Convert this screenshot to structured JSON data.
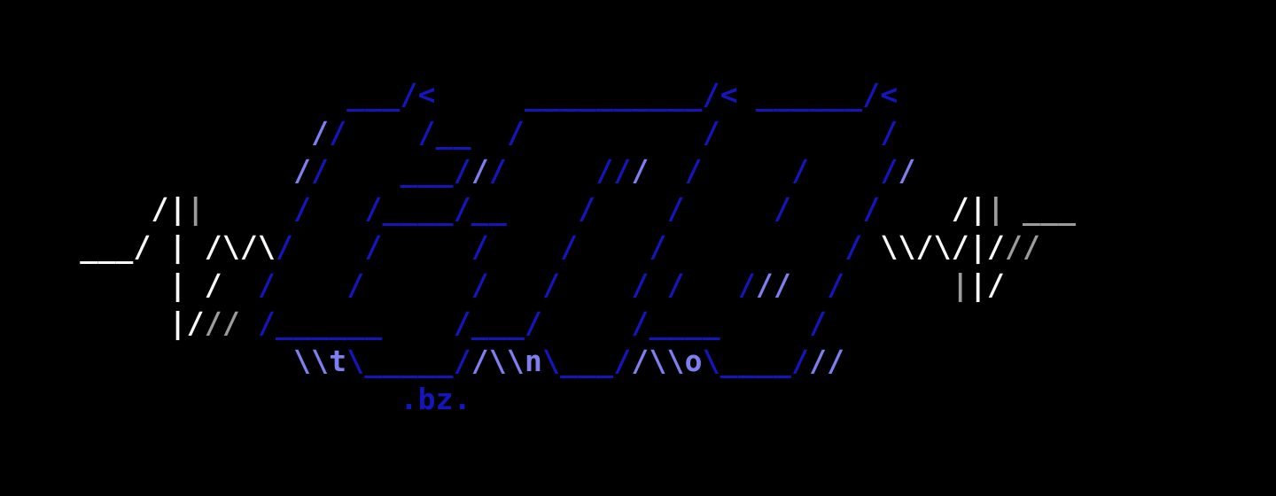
{
  "page": {
    "background": "#000000"
  },
  "art": {
    "palette": {
      "d": "#1515bd",
      "l": "#7e7ef0",
      "w": "#fafafa",
      "g": "#9c9c9c"
    },
    "letters": [
      "t",
      "n",
      "o"
    ],
    "site_label": ".bz.",
    "lines": [
      [
        [
          "s",
          "                   "
        ],
        [
          "d",
          "___/<"
        ],
        [
          "s",
          "     "
        ],
        [
          "d",
          "__________/<"
        ],
        [
          "s",
          " "
        ],
        [
          "d",
          "______/<"
        ]
      ],
      [
        [
          "s",
          "                 "
        ],
        [
          "l",
          "/"
        ],
        [
          "d",
          "/"
        ],
        [
          "s",
          "    "
        ],
        [
          "d",
          "/__"
        ],
        [
          "s",
          "  "
        ],
        [
          "d",
          "/"
        ],
        [
          "s",
          "          "
        ],
        [
          "d",
          "/"
        ],
        [
          "s",
          "         "
        ],
        [
          "d",
          "/"
        ]
      ],
      [
        [
          "s",
          "                "
        ],
        [
          "l",
          "/"
        ],
        [
          "d",
          "/"
        ],
        [
          "s",
          "    "
        ],
        [
          "d",
          "___/"
        ],
        [
          "l",
          "/"
        ],
        [
          "d",
          "/"
        ],
        [
          "s",
          "     "
        ],
        [
          "d",
          "//"
        ],
        [
          "l",
          "/"
        ],
        [
          "s",
          "  "
        ],
        [
          "d",
          "/"
        ],
        [
          "s",
          "     "
        ],
        [
          "d",
          "/"
        ],
        [
          "s",
          "    "
        ],
        [
          "d",
          "/"
        ],
        [
          "l",
          "/"
        ]
      ],
      [
        [
          "s",
          "        "
        ],
        [
          "w",
          "/|"
        ],
        [
          "g",
          "|"
        ],
        [
          "s",
          "     "
        ],
        [
          "d",
          "/"
        ],
        [
          "s",
          "   "
        ],
        [
          "d",
          "/____/__"
        ],
        [
          "s",
          "    "
        ],
        [
          "d",
          "/"
        ],
        [
          "s",
          "    "
        ],
        [
          "d",
          "/"
        ],
        [
          "s",
          "     "
        ],
        [
          "d",
          "/"
        ],
        [
          "s",
          "    "
        ],
        [
          "d",
          "/"
        ],
        [
          "s",
          "    "
        ],
        [
          "w",
          "/|"
        ],
        [
          "g",
          "|"
        ],
        [
          "s",
          " "
        ],
        [
          "g",
          "___"
        ]
      ],
      [
        [
          "s",
          "    "
        ],
        [
          "w",
          "___/ | /\\/\\"
        ],
        [
          "d",
          "/"
        ],
        [
          "s",
          "    "
        ],
        [
          "d",
          "/"
        ],
        [
          "s",
          "     "
        ],
        [
          "d",
          "/"
        ],
        [
          "s",
          "    "
        ],
        [
          "d",
          "/"
        ],
        [
          "s",
          "    "
        ],
        [
          "d",
          "/"
        ],
        [
          "s",
          "          "
        ],
        [
          "d",
          "/"
        ],
        [
          "s",
          " "
        ],
        [
          "w",
          "\\\\/\\/|/"
        ],
        [
          "g",
          "//"
        ]
      ],
      [
        [
          "s",
          "         "
        ],
        [
          "w",
          "| /"
        ],
        [
          "s",
          "  "
        ],
        [
          "d",
          "/"
        ],
        [
          "s",
          "    "
        ],
        [
          "d",
          "/"
        ],
        [
          "s",
          "      "
        ],
        [
          "d",
          "/"
        ],
        [
          "s",
          "   "
        ],
        [
          "d",
          "/"
        ],
        [
          "s",
          "    "
        ],
        [
          "d",
          "/ /"
        ],
        [
          "s",
          "   "
        ],
        [
          "d",
          "/"
        ],
        [
          "l",
          "//"
        ],
        [
          "s",
          "  "
        ],
        [
          "d",
          "/"
        ],
        [
          "s",
          "      "
        ],
        [
          "g",
          "|"
        ],
        [
          "w",
          "|/"
        ]
      ],
      [
        [
          "s",
          "         "
        ],
        [
          "w",
          "|/"
        ],
        [
          "g",
          "//"
        ],
        [
          "s",
          " "
        ],
        [
          "d",
          "/______"
        ],
        [
          "s",
          "    "
        ],
        [
          "d",
          "/___/"
        ],
        [
          "s",
          "     "
        ],
        [
          "d",
          "/____"
        ],
        [
          "s",
          "     "
        ],
        [
          "d",
          "/"
        ]
      ],
      [
        [
          "s",
          "                "
        ],
        [
          "l",
          "\\\\t"
        ],
        [
          "d",
          "\\_____/"
        ],
        [
          "l",
          "/\\\\n"
        ],
        [
          "d",
          "\\___/"
        ],
        [
          "l",
          "/\\\\o"
        ],
        [
          "d",
          "\\____/"
        ],
        [
          "l",
          "//"
        ]
      ],
      [
        [
          "s",
          "                      "
        ],
        [
          "d",
          ".bz."
        ]
      ]
    ]
  }
}
